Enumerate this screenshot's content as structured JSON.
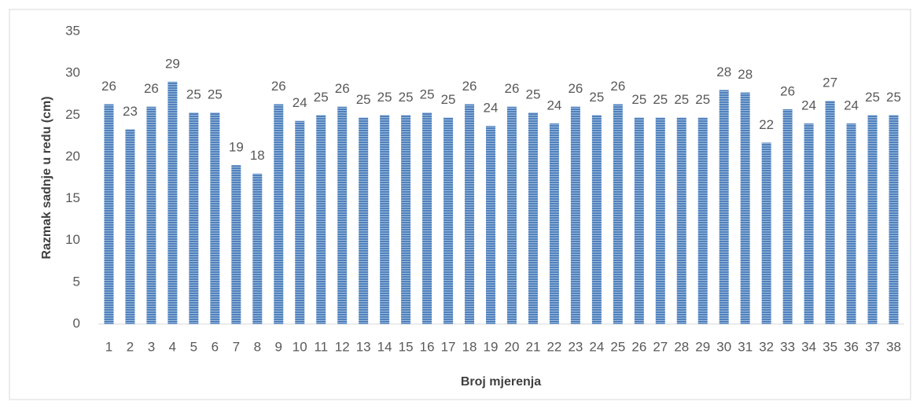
{
  "chart_data": {
    "type": "bar",
    "x_label": "Broj mjerenja",
    "y_label": "Razmak sadnje u redu (cm)",
    "categories": [
      "1",
      "2",
      "3",
      "4",
      "5",
      "6",
      "7",
      "8",
      "9",
      "10",
      "11",
      "12",
      "13",
      "14",
      "15",
      "16",
      "17",
      "18",
      "19",
      "20",
      "21",
      "22",
      "23",
      "24",
      "25",
      "26",
      "27",
      "28",
      "29",
      "30",
      "31",
      "32",
      "33",
      "34",
      "35",
      "36",
      "37",
      "38"
    ],
    "values": [
      26.3,
      23.3,
      26.0,
      29.0,
      25.3,
      25.3,
      19.0,
      18.0,
      26.3,
      24.3,
      25.0,
      26.0,
      24.7,
      25.0,
      25.0,
      25.3,
      24.7,
      26.3,
      23.7,
      26.0,
      25.3,
      24.0,
      26.0,
      25.0,
      26.3,
      24.7,
      24.7,
      24.7,
      24.7,
      28.0,
      27.7,
      21.7,
      25.7,
      24.0,
      26.7,
      24.0,
      25.0,
      25.0
    ],
    "value_labels": [
      "26",
      "23",
      "26",
      "29",
      "25",
      "25",
      "19",
      "18",
      "26",
      "24",
      "25",
      "26",
      "25",
      "25",
      "25",
      "25",
      "25",
      "26",
      "24",
      "26",
      "25",
      "24",
      "26",
      "25",
      "26",
      "25",
      "25",
      "25",
      "25",
      "28",
      "28",
      "22",
      "26",
      "24",
      "27",
      "24",
      "25",
      "25"
    ],
    "color": "#4f81bd",
    "ylim": [
      0,
      35
    ],
    "yticks": [
      0,
      5,
      10,
      15,
      20,
      25,
      30,
      35
    ],
    "grid": false
  }
}
